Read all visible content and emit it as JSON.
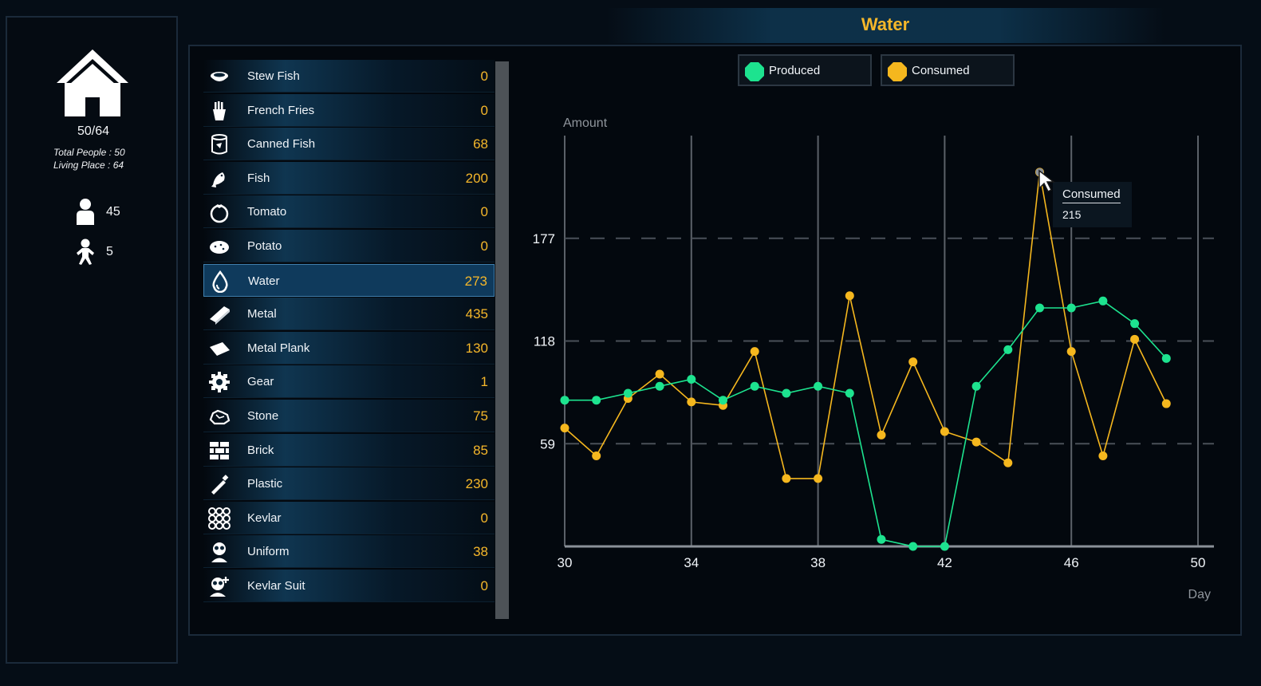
{
  "population": {
    "ratio": "50/64",
    "total_people_label": "Total People :  50",
    "living_place_label": "Living Place :  64",
    "adults": "45",
    "children": "5"
  },
  "title": "Water",
  "items": [
    {
      "name": "Stew Fish",
      "value": "0",
      "icon": "stew-fish-icon"
    },
    {
      "name": "French Fries",
      "value": "0",
      "icon": "french-fries-icon"
    },
    {
      "name": "Canned Fish",
      "value": "68",
      "icon": "canned-fish-icon"
    },
    {
      "name": "Fish",
      "value": "200",
      "icon": "fish-icon"
    },
    {
      "name": "Tomato",
      "value": "0",
      "icon": "tomato-icon"
    },
    {
      "name": "Potato",
      "value": "0",
      "icon": "potato-icon"
    },
    {
      "name": "Water",
      "value": "273",
      "icon": "water-drop-icon"
    },
    {
      "name": "Metal",
      "value": "435",
      "icon": "metal-icon"
    },
    {
      "name": "Metal Plank",
      "value": "130",
      "icon": "metal-plank-icon"
    },
    {
      "name": "Gear",
      "value": "1",
      "icon": "gear-icon"
    },
    {
      "name": "Stone",
      "value": "75",
      "icon": "stone-icon"
    },
    {
      "name": "Brick",
      "value": "85",
      "icon": "brick-icon"
    },
    {
      "name": "Plastic",
      "value": "230",
      "icon": "plastic-icon"
    },
    {
      "name": "Kevlar",
      "value": "0",
      "icon": "kevlar-icon"
    },
    {
      "name": "Uniform",
      "value": "38",
      "icon": "uniform-icon"
    },
    {
      "name": "Kevlar Suit",
      "value": "0",
      "icon": "kevlar-suit-icon"
    }
  ],
  "selected_item": "Water",
  "colors": {
    "produced": "#1de38f",
    "consumed": "#f5b71e",
    "accent": "#f5b72a"
  },
  "tooltip": {
    "title": "Consumed",
    "value": "215"
  },
  "chart_data": {
    "type": "line",
    "ylabel": "Amount",
    "xlabel": "Day",
    "xlim": [
      30,
      50
    ],
    "ylim": [
      0,
      236
    ],
    "x_ticks": [
      30,
      34,
      38,
      42,
      46,
      50
    ],
    "y_ticks": [
      59,
      118,
      177
    ],
    "legend": [
      "Produced",
      "Consumed"
    ],
    "legend_position": "top",
    "grid": true,
    "x": [
      30,
      31,
      32,
      33,
      34,
      35,
      36,
      37,
      38,
      39,
      40,
      41,
      42,
      43,
      44,
      45,
      46,
      47,
      48,
      49
    ],
    "series": [
      {
        "name": "Produced",
        "values": [
          84,
          84,
          88,
          92,
          96,
          84,
          92,
          88,
          92,
          88,
          4,
          0,
          0,
          92,
          113,
          137,
          137,
          141,
          128,
          108
        ]
      },
      {
        "name": "Consumed",
        "values": [
          68,
          52,
          85,
          99,
          83,
          81,
          112,
          39,
          39,
          144,
          64,
          106,
          66,
          60,
          48,
          215,
          112,
          52,
          119,
          82
        ]
      }
    ]
  }
}
